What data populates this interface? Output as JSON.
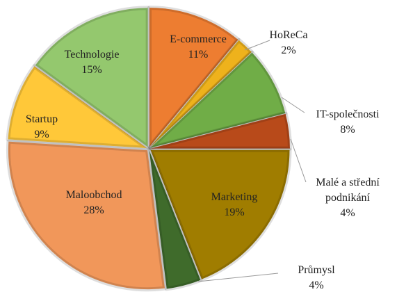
{
  "chart_data": {
    "type": "pie",
    "categories": [
      "E-commerce",
      "HoReCa",
      "IT-společnosti",
      "Malé a střední podnikání",
      "Marketing",
      "Průmysl",
      "Maloobchod",
      "Startup",
      "Technologie"
    ],
    "values": [
      11,
      2,
      8,
      4,
      19,
      4,
      28,
      9,
      15
    ],
    "value_labels": [
      "11%",
      "2%",
      "8%",
      "4%",
      "19%",
      "4%",
      "28%",
      "9%",
      "15%"
    ],
    "colors": [
      "#ED7D31",
      "#EEB21C",
      "#70AD47",
      "#B84A1A",
      "#A07D00",
      "#3F6B2B",
      "#F1975A",
      "#FFC839",
      "#94C86E"
    ]
  }
}
